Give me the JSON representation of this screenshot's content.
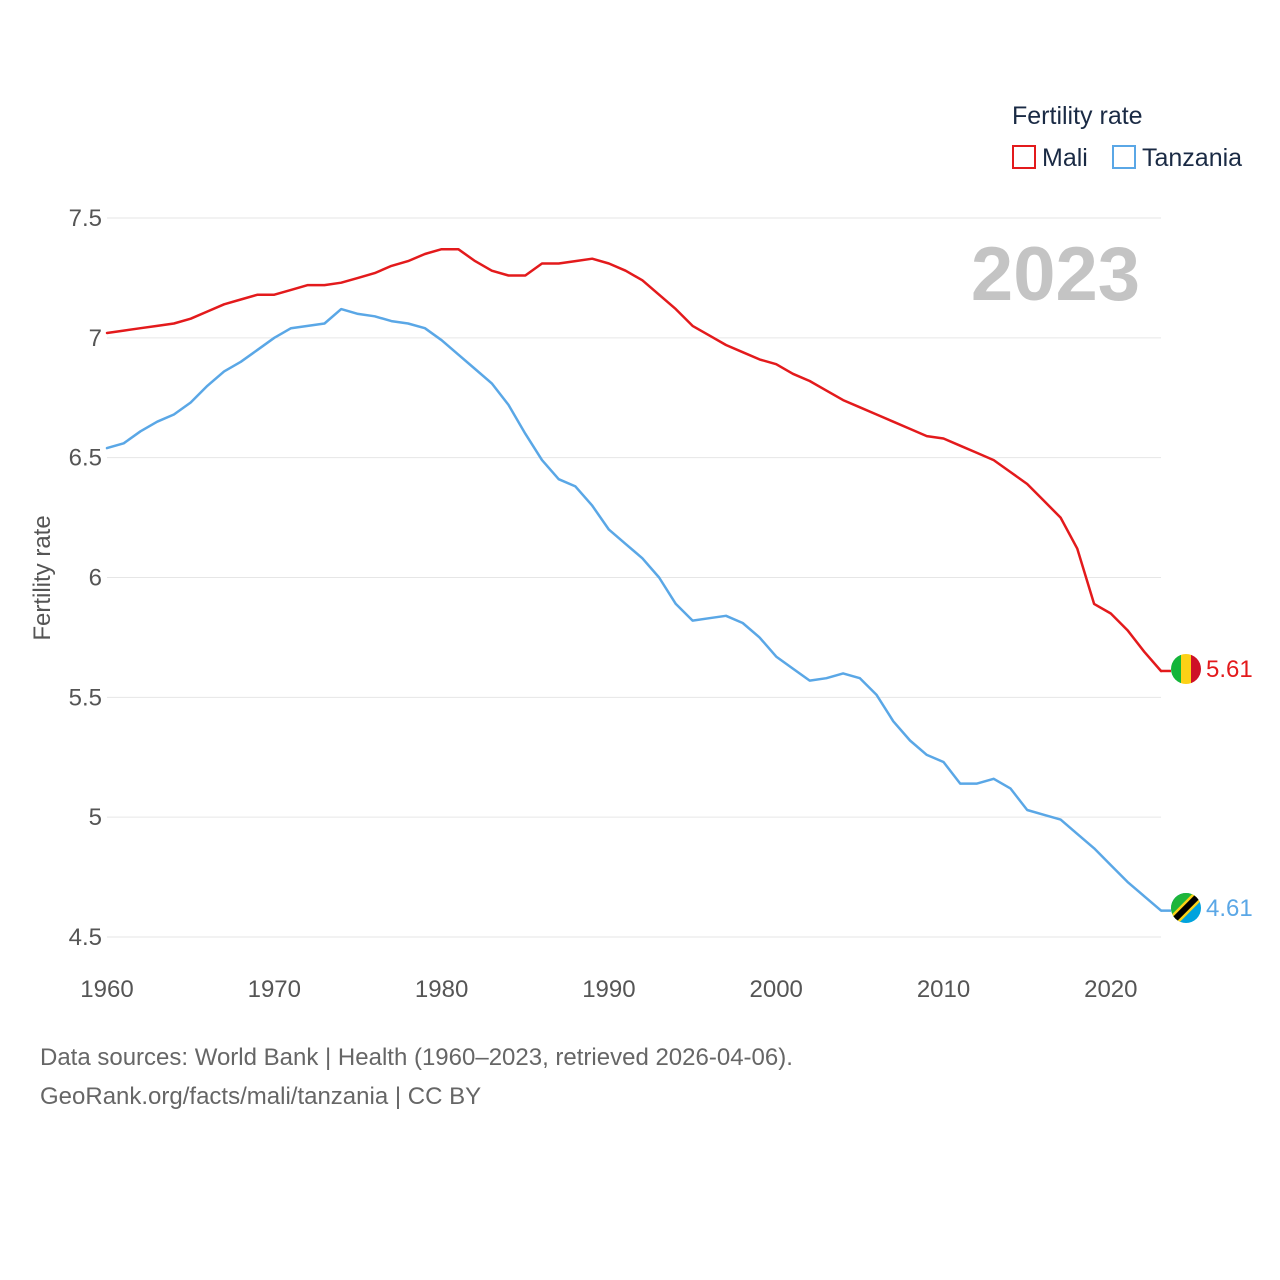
{
  "chart_data": {
    "type": "line",
    "title": "",
    "year_display": "2023",
    "ylabel": "Fertility rate",
    "xlabel": "",
    "xlim": [
      1960,
      2023
    ],
    "ylim": [
      4.5,
      7.5
    ],
    "x_ticks": [
      "1960",
      "1970",
      "1980",
      "1990",
      "2000",
      "2010",
      "2020"
    ],
    "y_ticks": [
      "4.5",
      "5",
      "5.5",
      "6",
      "6.5",
      "7",
      "7.5"
    ],
    "grid": true,
    "legend": {
      "title": "Fertility rate",
      "position": "top-right"
    },
    "x": [
      1960,
      1961,
      1962,
      1963,
      1964,
      1965,
      1966,
      1967,
      1968,
      1969,
      1970,
      1971,
      1972,
      1973,
      1974,
      1975,
      1976,
      1977,
      1978,
      1979,
      1980,
      1981,
      1982,
      1983,
      1984,
      1985,
      1986,
      1987,
      1988,
      1989,
      1990,
      1991,
      1992,
      1993,
      1994,
      1995,
      1996,
      1997,
      1998,
      1999,
      2000,
      2001,
      2002,
      2003,
      2004,
      2005,
      2006,
      2007,
      2008,
      2009,
      2010,
      2011,
      2012,
      2013,
      2014,
      2015,
      2016,
      2017,
      2018,
      2019,
      2020,
      2021,
      2022,
      2023
    ],
    "series": [
      {
        "name": "Mali",
        "color": "#e31a1c",
        "end_label": "5.61",
        "values": [
          7.02,
          7.03,
          7.04,
          7.05,
          7.06,
          7.08,
          7.11,
          7.14,
          7.16,
          7.18,
          7.18,
          7.2,
          7.22,
          7.22,
          7.23,
          7.25,
          7.27,
          7.3,
          7.32,
          7.35,
          7.37,
          7.37,
          7.32,
          7.28,
          7.26,
          7.26,
          7.31,
          7.31,
          7.32,
          7.33,
          7.31,
          7.28,
          7.24,
          7.18,
          7.12,
          7.05,
          7.01,
          6.97,
          6.94,
          6.91,
          6.89,
          6.85,
          6.82,
          6.78,
          6.74,
          6.71,
          6.68,
          6.65,
          6.62,
          6.59,
          6.58,
          6.55,
          6.52,
          6.49,
          6.44,
          6.39,
          6.32,
          6.25,
          6.12,
          5.89,
          5.85,
          5.78,
          5.69,
          5.61
        ]
      },
      {
        "name": "Tanzania",
        "color": "#5aa7e6",
        "end_label": "4.61",
        "values": [
          6.54,
          6.56,
          6.61,
          6.65,
          6.68,
          6.73,
          6.8,
          6.86,
          6.9,
          6.95,
          7.0,
          7.04,
          7.05,
          7.06,
          7.12,
          7.1,
          7.09,
          7.07,
          7.06,
          7.04,
          6.99,
          6.93,
          6.87,
          6.81,
          6.72,
          6.6,
          6.49,
          6.41,
          6.38,
          6.3,
          6.2,
          6.14,
          6.08,
          6.0,
          5.89,
          5.82,
          5.83,
          5.84,
          5.81,
          5.75,
          5.67,
          5.62,
          5.57,
          5.58,
          5.6,
          5.58,
          5.51,
          5.4,
          5.32,
          5.26,
          5.23,
          5.14,
          5.14,
          5.16,
          5.12,
          5.03,
          5.01,
          4.99,
          4.93,
          4.87,
          4.8,
          4.73,
          4.67,
          4.61
        ]
      }
    ]
  },
  "footer": {
    "line1": "Data sources: World Bank | Health (1960–2023, retrieved 2026-04-06).",
    "line2": "GeoRank.org/facts/mali/tanzania | CC BY"
  },
  "colors": {
    "mali_flag": [
      "#14b53a",
      "#fcd116",
      "#ce1126"
    ],
    "tanzania_flag": [
      "#1eb53a",
      "#fcd116",
      "#000000",
      "#00a3dd"
    ],
    "grid": "#e6e6e6",
    "watermark": "#c4c4c4"
  }
}
